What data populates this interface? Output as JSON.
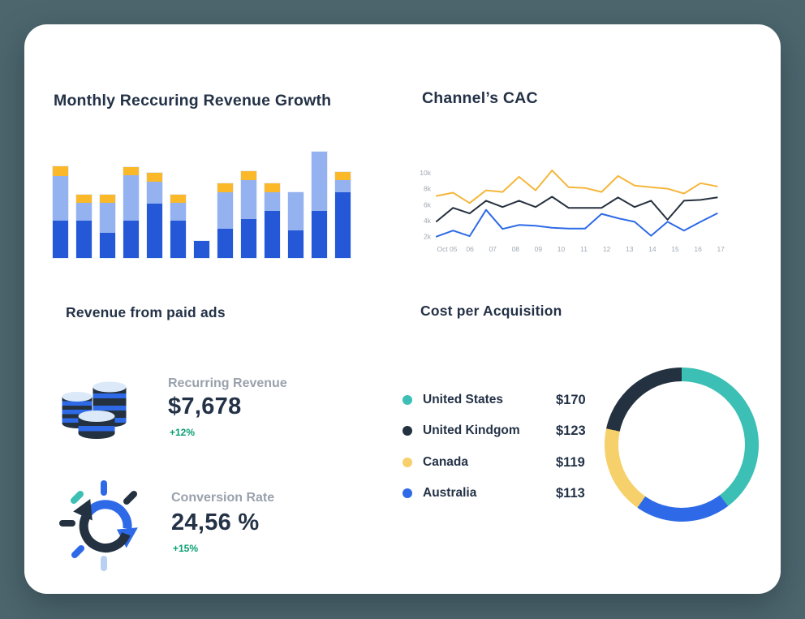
{
  "page": {
    "background_color": "#4d666e",
    "card_color": "#ffffff"
  },
  "kpi_section": {
    "title": "Revenue from paid ads",
    "items": [
      {
        "icon": "coins-icon",
        "label": "Recurring Revenue",
        "value": "$7,678",
        "delta": "+12%"
      },
      {
        "icon": "sync-icon",
        "label": "Conversion Rate",
        "value": "24,56 %",
        "delta": "+15%"
      }
    ],
    "delta_color": "#0a9e74",
    "label_color": "#99a1ac"
  },
  "chart_data": [
    {
      "id": "mrr-growth",
      "type": "bar",
      "stacked": true,
      "title": "Monthly Reccuring Revenue Growth",
      "axis_labels_visible": false,
      "unit": "relative height (no axis shown)",
      "bar_count": 13,
      "series": [
        {
          "name": "base-dark-blue",
          "color": "#2458d6",
          "values": [
            46,
            46,
            31,
            46,
            67,
            46,
            21,
            36,
            48,
            58,
            34,
            58,
            81
          ]
        },
        {
          "name": "mid-light-blue",
          "color": "#94b1f0",
          "values": [
            55,
            22,
            37,
            56,
            27,
            22,
            0,
            45,
            48,
            23,
            47,
            73,
            15
          ]
        },
        {
          "name": "top-yellow",
          "color": "#fbb829",
          "values": [
            12,
            10,
            10,
            10,
            11,
            10,
            0,
            11,
            11,
            11,
            0,
            0,
            10
          ]
        }
      ],
      "note_top_yellow": "bars 7 and 12 have no yellow cap; bar 7 has dark segment only"
    },
    {
      "id": "channels-cac",
      "type": "line",
      "title": "Channel’s CAC",
      "x_tick_labels": [
        "Oct 05",
        "06",
        "07",
        "08",
        "09",
        "10",
        "11",
        "12",
        "13",
        "14",
        "15",
        "16",
        "17"
      ],
      "y_tick_labels": [
        "10k",
        "8k",
        "6k",
        "4k",
        "2k"
      ],
      "ylim_thousands": [
        0,
        11
      ],
      "grid": false,
      "legend_position": "none",
      "series": [
        {
          "name": "yellow-line",
          "color": "#f5b63b",
          "values_thousands": [
            7.1,
            7.5,
            6.2,
            7.8,
            7.6,
            9.5,
            7.8,
            10.3,
            8.2,
            8.1,
            7.6,
            9.6,
            8.4,
            8.2,
            8.0,
            7.4,
            8.7,
            8.3
          ]
        },
        {
          "name": "navy-line",
          "color": "#26313f",
          "values_thousands": [
            3.9,
            5.6,
            4.9,
            6.5,
            5.7,
            6.5,
            5.7,
            7.0,
            5.6,
            5.6,
            5.6,
            6.9,
            5.7,
            6.5,
            4.1,
            6.5,
            6.6,
            6.9
          ]
        },
        {
          "name": "blue-line",
          "color": "#2e6ae6",
          "values_thousands": [
            2.0,
            2.75,
            2.05,
            5.35,
            2.95,
            3.45,
            3.35,
            3.1,
            3.0,
            3.0,
            4.85,
            4.3,
            3.85,
            2.1,
            3.85,
            2.75,
            3.85,
            4.9
          ]
        }
      ]
    },
    {
      "id": "cost-per-acquisition",
      "type": "pie",
      "donut": true,
      "title": "Cost per Acquisition",
      "legend": [
        {
          "label": "United States",
          "value": "$170",
          "color": "#3cbfb4"
        },
        {
          "label": "United Kindgom",
          "value": "$123",
          "color": "#233140"
        },
        {
          "label": "Canada",
          "value": "$119",
          "color": "#f6d06a"
        },
        {
          "label": "Australia",
          "value": "$113",
          "color": "#2e6ae8"
        }
      ],
      "segments_clockwise_from_top": [
        {
          "label": "United States",
          "color": "#3cbfb4",
          "sweep_deg": 143
        },
        {
          "label": "Australia",
          "color": "#2e6ae8",
          "sweep_deg": 72
        },
        {
          "label": "Canada",
          "color": "#f6d06a",
          "sweep_deg": 67
        },
        {
          "label": "United Kindgom",
          "color": "#233140",
          "sweep_deg": 78
        }
      ]
    }
  ]
}
